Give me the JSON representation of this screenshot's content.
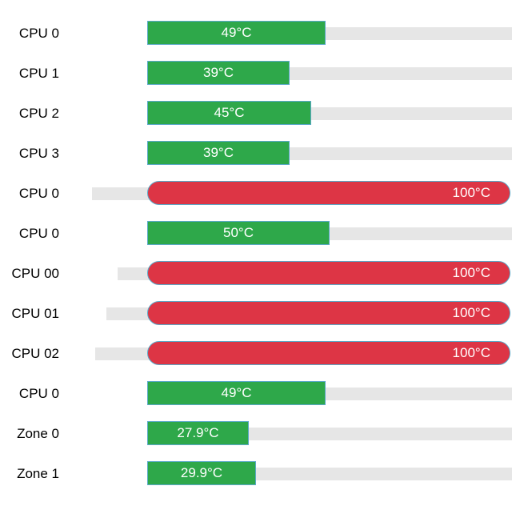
{
  "colors": {
    "normal": "#2ea84a",
    "critical": "#dd3545",
    "track": "#e6e6e6"
  },
  "sensors": [
    {
      "label": "CPU 0",
      "temp": "49°C",
      "level": 0.49,
      "critical": false
    },
    {
      "label": "CPU 1",
      "temp": "39°C",
      "level": 0.39,
      "critical": false
    },
    {
      "label": "CPU 2",
      "temp": "45°C",
      "level": 0.45,
      "critical": false
    },
    {
      "label": "CPU 3",
      "temp": "39°C",
      "level": 0.39,
      "critical": false
    },
    {
      "label": "CPU 0",
      "temp": "100°C",
      "level": 1.0,
      "critical": true
    },
    {
      "label": "CPU 0",
      "temp": "50°C",
      "level": 0.5,
      "critical": false
    },
    {
      "label": "CPU 00",
      "temp": "100°C",
      "level": 1.0,
      "critical": true
    },
    {
      "label": "CPU 01",
      "temp": "100°C",
      "level": 1.0,
      "critical": true
    },
    {
      "label": "CPU 02",
      "temp": "100°C",
      "level": 1.0,
      "critical": true
    },
    {
      "label": "CPU 0",
      "temp": "49°C",
      "level": 0.49,
      "critical": false
    },
    {
      "label": "Zone 0",
      "temp": "27.9°C",
      "level": 0.279,
      "critical": false
    },
    {
      "label": "Zone 1",
      "temp": "29.9°C",
      "level": 0.299,
      "critical": false
    }
  ]
}
